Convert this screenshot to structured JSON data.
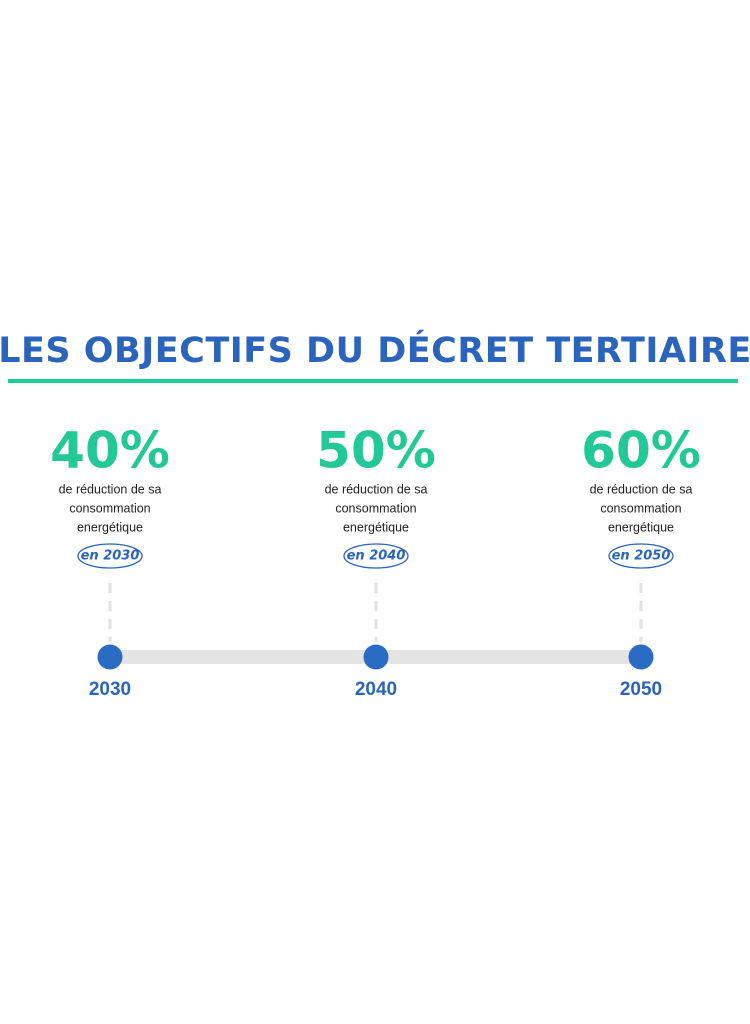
{
  "title": "LES OBJECTIFS DU DÉCRET TERTIAIRE",
  "milestones": [
    {
      "percent": "40%",
      "description": [
        "de réduction de sa",
        "consommation",
        "energétique"
      ],
      "badge": "en 2030",
      "year": "2030"
    },
    {
      "percent": "50%",
      "description": [
        "de réduction de sa",
        "consommation",
        "energétique"
      ],
      "badge": "en 2040",
      "year": "2040"
    },
    {
      "percent": "60%",
      "description": [
        "de réduction de sa",
        "consommation",
        "energétique"
      ],
      "badge": "en 2050",
      "year": "2050"
    }
  ]
}
